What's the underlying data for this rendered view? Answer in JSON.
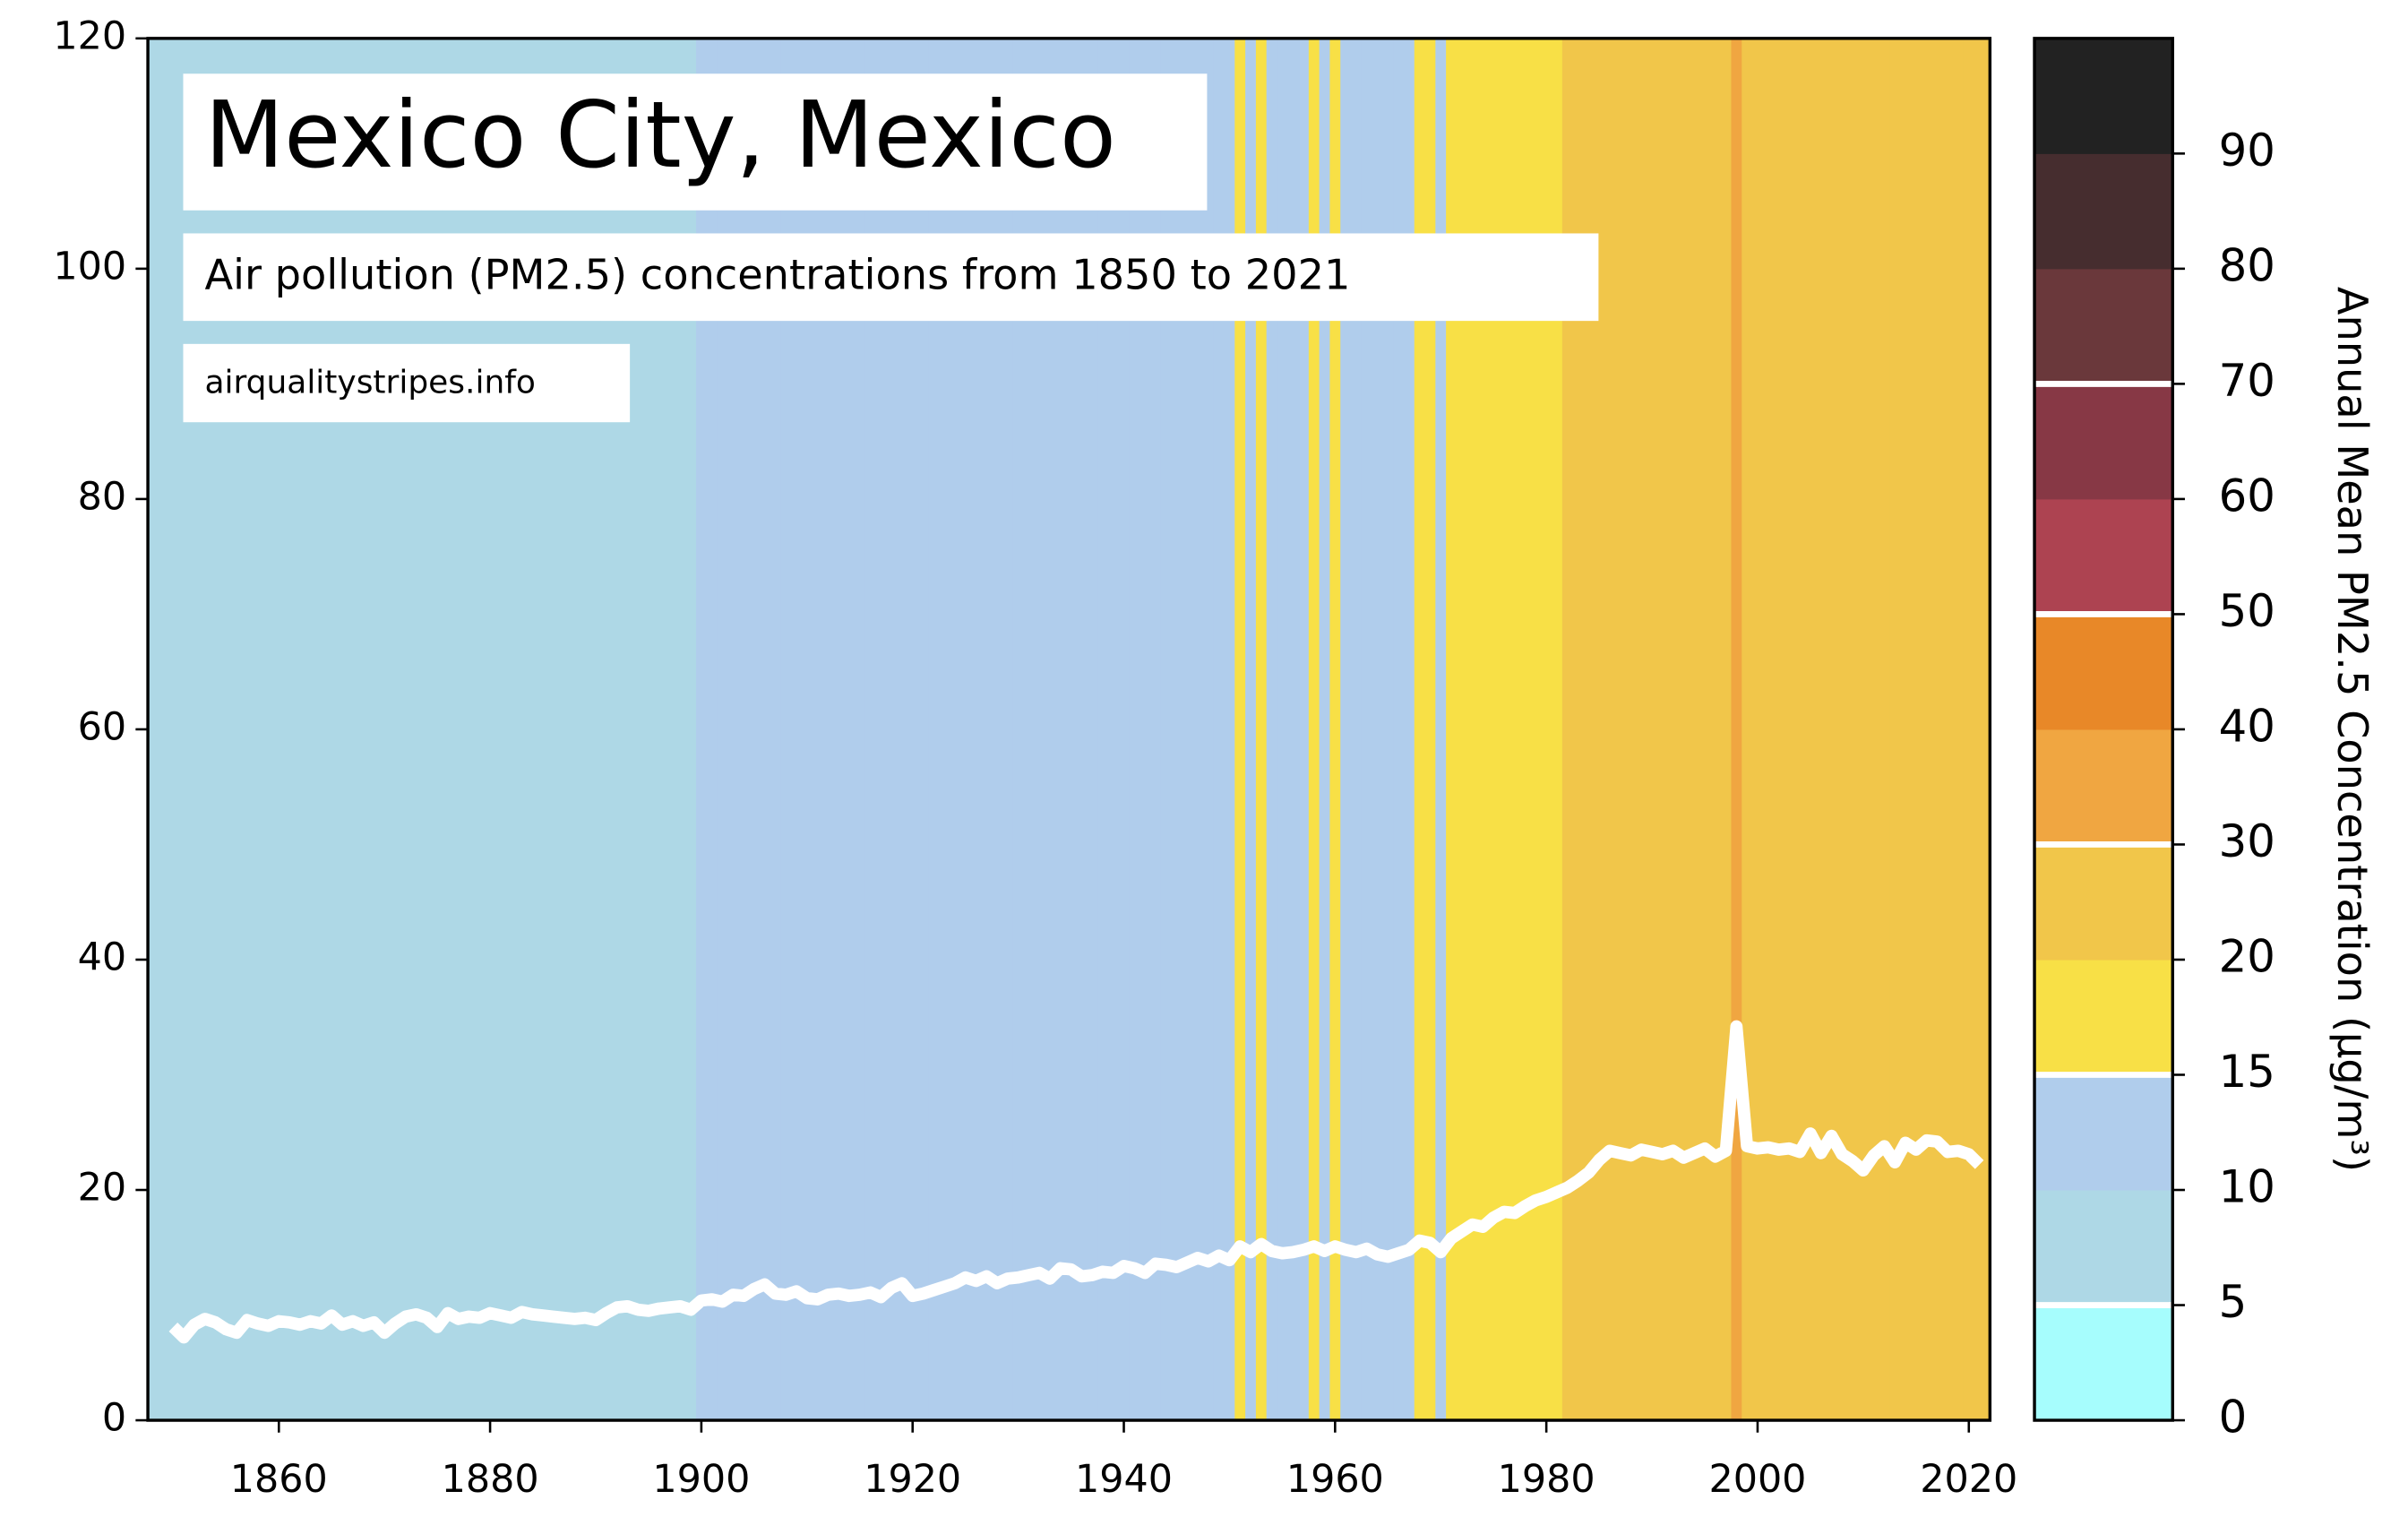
{
  "chart_data": {
    "type": "line",
    "title": "Mexico City, Mexico",
    "subtitle": "Air pollution (PM2.5) concentrations from 1850 to 2021",
    "source": "airqualitystripes.info",
    "x": [
      1850,
      1851,
      1852,
      1853,
      1854,
      1855,
      1856,
      1857,
      1858,
      1859,
      1860,
      1861,
      1862,
      1863,
      1864,
      1865,
      1866,
      1867,
      1868,
      1869,
      1870,
      1871,
      1872,
      1873,
      1874,
      1875,
      1876,
      1877,
      1878,
      1879,
      1880,
      1881,
      1882,
      1883,
      1884,
      1885,
      1886,
      1887,
      1888,
      1889,
      1890,
      1891,
      1892,
      1893,
      1894,
      1895,
      1896,
      1897,
      1898,
      1899,
      1900,
      1901,
      1902,
      1903,
      1904,
      1905,
      1906,
      1907,
      1908,
      1909,
      1910,
      1911,
      1912,
      1913,
      1914,
      1915,
      1916,
      1917,
      1918,
      1919,
      1920,
      1921,
      1922,
      1923,
      1924,
      1925,
      1926,
      1927,
      1928,
      1929,
      1930,
      1931,
      1932,
      1933,
      1934,
      1935,
      1936,
      1937,
      1938,
      1939,
      1940,
      1941,
      1942,
      1943,
      1944,
      1945,
      1946,
      1947,
      1948,
      1949,
      1950,
      1951,
      1952,
      1953,
      1954,
      1955,
      1956,
      1957,
      1958,
      1959,
      1960,
      1961,
      1962,
      1963,
      1964,
      1965,
      1966,
      1967,
      1968,
      1969,
      1970,
      1971,
      1972,
      1973,
      1974,
      1975,
      1976,
      1977,
      1978,
      1979,
      1980,
      1981,
      1982,
      1983,
      1984,
      1985,
      1986,
      1987,
      1988,
      1989,
      1990,
      1991,
      1992,
      1993,
      1994,
      1995,
      1996,
      1997,
      1998,
      1999,
      2000,
      2001,
      2002,
      2003,
      2004,
      2005,
      2006,
      2007,
      2008,
      2009,
      2010,
      2011,
      2012,
      2013,
      2014,
      2015,
      2016,
      2017,
      2018,
      2019,
      2020,
      2021
    ],
    "series": [
      {
        "color": "#ffffff",
        "values": [
          8.1,
          7.2,
          8.3,
          8.8,
          8.5,
          7.9,
          7.6,
          8.7,
          8.4,
          8.2,
          8.6,
          8.5,
          8.3,
          8.6,
          8.4,
          9.1,
          8.3,
          8.6,
          8.2,
          8.5,
          7.6,
          8.4,
          9.0,
          9.2,
          8.9,
          8.1,
          9.3,
          8.8,
          9.0,
          8.9,
          9.3,
          9.1,
          8.9,
          9.4,
          9.2,
          9.1,
          9.0,
          8.9,
          8.8,
          8.9,
          8.7,
          9.3,
          9.8,
          9.9,
          9.6,
          9.5,
          9.7,
          9.8,
          9.9,
          9.6,
          10.4,
          10.5,
          10.3,
          10.9,
          10.8,
          11.4,
          11.8,
          11.0,
          10.9,
          11.2,
          10.6,
          10.5,
          10.9,
          11.0,
          10.8,
          10.9,
          11.1,
          10.7,
          11.5,
          11.9,
          10.8,
          11.0,
          11.3,
          11.6,
          11.9,
          12.4,
          12.1,
          12.5,
          11.9,
          12.3,
          12.4,
          12.6,
          12.8,
          12.3,
          13.2,
          13.1,
          12.5,
          12.6,
          12.9,
          12.8,
          13.4,
          13.2,
          12.8,
          13.6,
          13.5,
          13.3,
          13.7,
          14.1,
          13.8,
          14.3,
          13.9,
          15.1,
          14.6,
          15.3,
          14.7,
          14.5,
          14.6,
          14.8,
          15.1,
          14.7,
          15.1,
          14.8,
          14.6,
          14.9,
          14.4,
          14.2,
          14.5,
          14.8,
          15.6,
          15.4,
          14.6,
          15.8,
          16.4,
          17.0,
          16.8,
          17.6,
          18.1,
          18.0,
          18.6,
          19.1,
          19.4,
          19.8,
          20.2,
          20.8,
          21.5,
          22.6,
          23.4,
          23.2,
          23.0,
          23.5,
          23.3,
          23.1,
          23.4,
          22.8,
          23.2,
          23.6,
          22.9,
          23.4,
          34.2,
          23.8,
          23.6,
          23.7,
          23.5,
          23.6,
          23.3,
          24.9,
          23.2,
          24.7,
          23.1,
          22.5,
          21.7,
          23.0,
          23.8,
          22.4,
          24.1,
          23.5,
          24.3,
          24.2,
          23.3,
          23.4,
          23.1,
          22.2
        ]
      }
    ],
    "xlim": [
      1847.6,
      2022
    ],
    "xticks": [
      1860,
      1880,
      1900,
      1920,
      1940,
      1960,
      1980,
      2000,
      2020
    ],
    "ylim": [
      0,
      120
    ],
    "yticks": [
      0,
      20,
      40,
      60,
      80,
      100,
      120
    ],
    "colorbar": {
      "label": "Annual Mean PM2.5 Concentration (μg/m³)",
      "ticks": [
        0,
        5,
        10,
        15,
        20,
        30,
        40,
        50,
        60,
        70,
        80,
        90
      ],
      "colors": [
        "#a6fdfd",
        "#aed8e6",
        "#b0cdec",
        "#f8e046",
        "#f1c64a",
        "#f0a641",
        "#e88828",
        "#ad4351",
        "#873845",
        "#6a383b",
        "#462d2f",
        "#222222"
      ],
      "highlight_ticks": [
        5,
        15,
        30,
        50,
        70
      ]
    }
  }
}
